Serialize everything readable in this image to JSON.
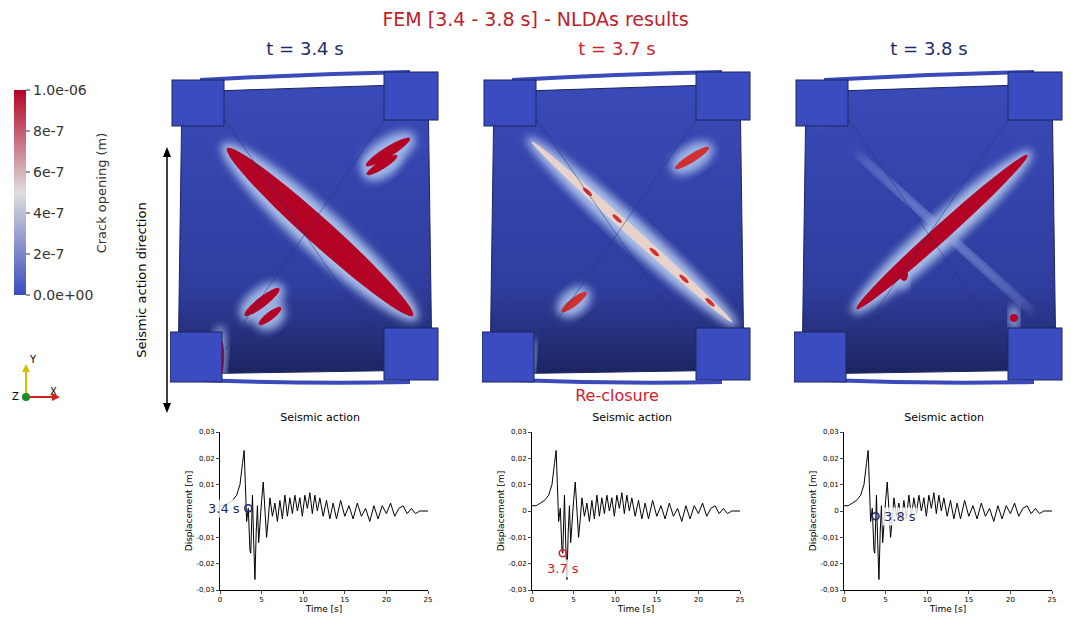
{
  "title": "FEM [3.4 - 3.8 s] - NLDAs results",
  "colorbar": {
    "title": "Crack opening (m)",
    "range": [
      0,
      1e-06
    ],
    "ticks": [
      {
        "value": 1e-06,
        "label": "1.0e-06"
      },
      {
        "value": 8e-07,
        "label": "8e-7"
      },
      {
        "value": 6e-07,
        "label": "6e-7"
      },
      {
        "value": 4e-07,
        "label": "4e-7"
      },
      {
        "value": 2e-07,
        "label": "2e-7"
      },
      {
        "value": 0,
        "label": "0.0e+00"
      }
    ]
  },
  "direction_label": "Seismic action direction",
  "triad": [
    "Y",
    "Z",
    "X"
  ],
  "panels": [
    {
      "label": "t = 3.4 s",
      "color": "#1f2a6e"
    },
    {
      "label": "t = 3.7 s",
      "color": "#d4202a",
      "note": "Re-closure"
    },
    {
      "label": "t = 3.8 s",
      "color": "#1f2a6e"
    }
  ],
  "chart_data": [
    {
      "type": "line",
      "title": "Seismic action",
      "x_label": "Time [s]",
      "y_label": "Displacement [m]",
      "color": "#000000",
      "x": [
        0,
        0.5,
        1,
        1.5,
        2,
        2.4,
        2.7,
        2.9,
        3.05,
        3.2,
        3.4,
        3.5,
        3.6,
        3.7,
        3.8,
        3.9,
        4.05,
        4.2,
        4.35,
        4.5,
        4.65,
        4.8,
        5.0,
        5.2,
        5.4,
        5.6,
        5.8,
        6.0,
        6.3,
        6.6,
        6.9,
        7.2,
        7.5,
        7.8,
        8.1,
        8.4,
        8.7,
        9.0,
        9.3,
        9.6,
        9.9,
        10.2,
        10.5,
        10.8,
        11.1,
        11.4,
        11.7,
        12.0,
        12.4,
        12.8,
        13.2,
        13.6,
        14.0,
        14.5,
        15.0,
        15.5,
        16,
        16.5,
        17,
        17.5,
        18,
        18.5,
        19,
        19.5,
        20,
        20.5,
        21,
        21.5,
        22,
        22.5,
        23,
        23.5,
        24,
        25
      ],
      "values": [
        0.002,
        0.002,
        0.003,
        0.004,
        0.006,
        0.01,
        0.018,
        0.023,
        0.01,
        -0.004,
        0.001,
        -0.008,
        -0.015,
        -0.016,
        -0.002,
        0.006,
        -0.012,
        -0.026,
        -0.008,
        0.002,
        -0.012,
        -0.004,
        0.004,
        0.011,
        0.002,
        -0.01,
        -0.003,
        0.005,
        -0.002,
        0.003,
        -0.004,
        0.004,
        -0.003,
        0.006,
        -0.002,
        0.005,
        -0.001,
        0.006,
        0,
        0.005,
        -0.002,
        0.006,
        0.001,
        0.007,
        -0.001,
        0.006,
        0,
        0.005,
        -0.002,
        0.004,
        -0.003,
        0.003,
        -0.003,
        0.004,
        -0.002,
        0.002,
        -0.003,
        0.003,
        -0.002,
        0.001,
        -0.004,
        0.002,
        -0.003,
        0.002,
        -0.001,
        0.003,
        -0.002,
        0.001,
        0.002,
        -0.001,
        0.001,
        -0.001,
        0,
        0
      ],
      "xlim": [
        0,
        25
      ],
      "xticks": [
        0,
        5,
        10,
        15,
        20,
        25
      ],
      "ylim": [
        -0.03,
        0.03
      ],
      "yticks": [
        {
          "value": 0.03,
          "label": "0,03"
        },
        {
          "value": 0.02,
          "label": "0,02"
        },
        {
          "value": 0.01,
          "label": "0,01"
        },
        0,
        {
          "value": -0.01,
          "label": "-0,01"
        },
        {
          "value": -0.02,
          "label": "-0,02"
        },
        {
          "value": -0.03,
          "label": "-0,03"
        }
      ],
      "highlight": {
        "x": 3.4,
        "y": 0.001,
        "label": "3.4 s",
        "color": "#1f2a6e",
        "marker": "circle-open"
      }
    },
    {
      "type": "line",
      "title": "Seismic action",
      "x_label": "Time [s]",
      "y_label": "Displacement [m]",
      "color": "#000000",
      "x": [
        0,
        0.5,
        1,
        1.5,
        2,
        2.4,
        2.7,
        2.9,
        3.05,
        3.2,
        3.4,
        3.5,
        3.6,
        3.7,
        3.8,
        3.9,
        4.05,
        4.2,
        4.35,
        4.5,
        4.65,
        4.8,
        5.0,
        5.2,
        5.4,
        5.6,
        5.8,
        6.0,
        6.3,
        6.6,
        6.9,
        7.2,
        7.5,
        7.8,
        8.1,
        8.4,
        8.7,
        9.0,
        9.3,
        9.6,
        9.9,
        10.2,
        10.5,
        10.8,
        11.1,
        11.4,
        11.7,
        12.0,
        12.4,
        12.8,
        13.2,
        13.6,
        14.0,
        14.5,
        15.0,
        15.5,
        16,
        16.5,
        17,
        17.5,
        18,
        18.5,
        19,
        19.5,
        20,
        20.5,
        21,
        21.5,
        22,
        22.5,
        23,
        23.5,
        24,
        25
      ],
      "values": [
        0.002,
        0.002,
        0.003,
        0.004,
        0.006,
        0.01,
        0.018,
        0.023,
        0.01,
        -0.004,
        0.001,
        -0.008,
        -0.015,
        -0.016,
        -0.002,
        0.006,
        -0.012,
        -0.026,
        -0.008,
        0.002,
        -0.012,
        -0.004,
        0.004,
        0.011,
        0.002,
        -0.01,
        -0.003,
        0.005,
        -0.002,
        0.003,
        -0.004,
        0.004,
        -0.003,
        0.006,
        -0.002,
        0.005,
        -0.001,
        0.006,
        0,
        0.005,
        -0.002,
        0.006,
        0.001,
        0.007,
        -0.001,
        0.006,
        0,
        0.005,
        -0.002,
        0.004,
        -0.003,
        0.003,
        -0.003,
        0.004,
        -0.002,
        0.002,
        -0.003,
        0.003,
        -0.002,
        0.001,
        -0.004,
        0.002,
        -0.003,
        0.002,
        -0.001,
        0.003,
        -0.002,
        0.001,
        0.002,
        -0.001,
        0.001,
        -0.001,
        0,
        0
      ],
      "xlim": [
        0,
        25
      ],
      "xticks": [
        0,
        5,
        10,
        15,
        20,
        25
      ],
      "ylim": [
        -0.03,
        0.03
      ],
      "yticks": [
        {
          "value": 0.03,
          "label": "0,03"
        },
        {
          "value": 0.02,
          "label": "0,02"
        },
        {
          "value": 0.01,
          "label": "0,01"
        },
        0,
        {
          "value": -0.01,
          "label": "-0,01"
        },
        {
          "value": -0.02,
          "label": "-0,02"
        },
        {
          "value": -0.03,
          "label": "-0,03"
        }
      ],
      "highlight": {
        "x": 3.7,
        "y": -0.016,
        "label": "3.7 s",
        "color": "#d4202a",
        "marker": "circle-open"
      }
    },
    {
      "type": "line",
      "title": "Seismic action",
      "x_label": "Time [s]",
      "y_label": "Displacement [m]",
      "color": "#000000",
      "x": [
        0,
        0.5,
        1,
        1.5,
        2,
        2.4,
        2.7,
        2.9,
        3.05,
        3.2,
        3.4,
        3.5,
        3.6,
        3.7,
        3.8,
        3.9,
        4.05,
        4.2,
        4.35,
        4.5,
        4.65,
        4.8,
        5.0,
        5.2,
        5.4,
        5.6,
        5.8,
        6.0,
        6.3,
        6.6,
        6.9,
        7.2,
        7.5,
        7.8,
        8.1,
        8.4,
        8.7,
        9.0,
        9.3,
        9.6,
        9.9,
        10.2,
        10.5,
        10.8,
        11.1,
        11.4,
        11.7,
        12.0,
        12.4,
        12.8,
        13.2,
        13.6,
        14.0,
        14.5,
        15.0,
        15.5,
        16,
        16.5,
        17,
        17.5,
        18,
        18.5,
        19,
        19.5,
        20,
        20.5,
        21,
        21.5,
        22,
        22.5,
        23,
        23.5,
        24,
        25
      ],
      "values": [
        0.002,
        0.002,
        0.003,
        0.004,
        0.006,
        0.01,
        0.018,
        0.023,
        0.01,
        -0.004,
        0.001,
        -0.008,
        -0.015,
        -0.016,
        -0.002,
        0.006,
        -0.012,
        -0.026,
        -0.008,
        0.002,
        -0.012,
        -0.004,
        0.004,
        0.011,
        0.002,
        -0.01,
        -0.003,
        0.005,
        -0.002,
        0.003,
        -0.004,
        0.004,
        -0.003,
        0.006,
        -0.002,
        0.005,
        -0.001,
        0.006,
        0,
        0.005,
        -0.002,
        0.006,
        0.001,
        0.007,
        -0.001,
        0.006,
        0,
        0.005,
        -0.002,
        0.004,
        -0.003,
        0.003,
        -0.003,
        0.004,
        -0.002,
        0.002,
        -0.003,
        0.003,
        -0.002,
        0.001,
        -0.004,
        0.002,
        -0.003,
        0.002,
        -0.001,
        0.003,
        -0.002,
        0.001,
        0.002,
        -0.001,
        0.001,
        -0.001,
        0,
        0
      ],
      "xlim": [
        0,
        25
      ],
      "xticks": [
        0,
        5,
        10,
        15,
        20,
        25
      ],
      "ylim": [
        -0.03,
        0.03
      ],
      "yticks": [
        {
          "value": 0.03,
          "label": "0,03"
        },
        {
          "value": 0.02,
          "label": "0,02"
        },
        {
          "value": 0.01,
          "label": "0,01"
        },
        0,
        {
          "value": -0.01,
          "label": "-0,01"
        },
        {
          "value": -0.02,
          "label": "-0,02"
        },
        {
          "value": -0.03,
          "label": "-0,03"
        }
      ],
      "highlight": {
        "x": 3.8,
        "y": -0.002,
        "label": "3.8 s",
        "color": "#1f2a6e",
        "marker": "circle-open"
      }
    }
  ]
}
